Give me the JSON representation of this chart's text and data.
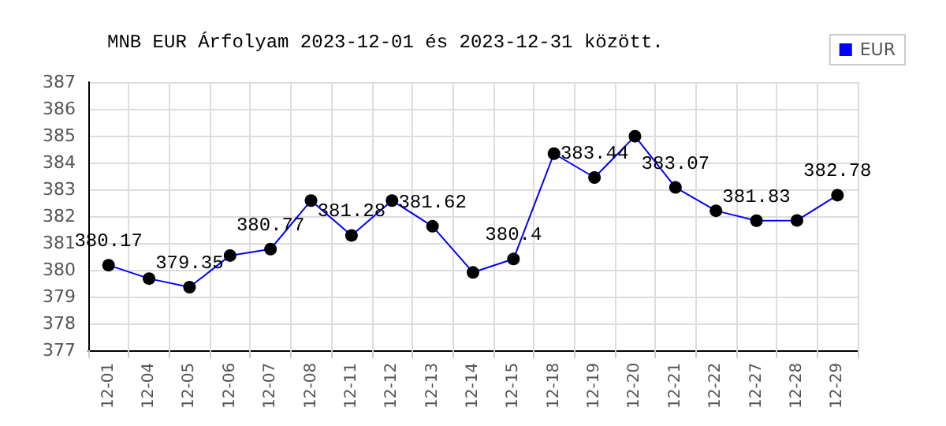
{
  "chart_data": {
    "type": "line",
    "title": "MNB EUR Árfolyam 2023-12-01 és 2023-12-31 között.",
    "categories": [
      "12-01",
      "12-04",
      "12-05",
      "12-06",
      "12-07",
      "12-08",
      "12-11",
      "12-12",
      "12-13",
      "12-14",
      "12-15",
      "12-18",
      "12-19",
      "12-20",
      "12-21",
      "12-22",
      "12-27",
      "12-28",
      "12-29"
    ],
    "series": [
      {
        "name": "EUR",
        "color": "#0000ff",
        "values": [
          380.17,
          379.67,
          379.35,
          380.53,
          380.77,
          382.58,
          381.28,
          382.58,
          381.62,
          379.9,
          380.4,
          384.33,
          383.44,
          384.98,
          383.07,
          382.2,
          381.83,
          381.84,
          382.78
        ],
        "value_labels": [
          "380.17",
          null,
          "379.35",
          null,
          "380.77",
          null,
          "381.28",
          null,
          "381.62",
          null,
          "380.4",
          null,
          "383.44",
          null,
          "383.07",
          null,
          "381.83",
          null,
          "382.78"
        ]
      }
    ],
    "ylim": [
      377,
      387
    ],
    "yticks": [
      377,
      378,
      379,
      380,
      381,
      382,
      383,
      384,
      385,
      386,
      387
    ],
    "grid": true,
    "legend": "top right",
    "marker": "circle",
    "line_style": "solid"
  }
}
